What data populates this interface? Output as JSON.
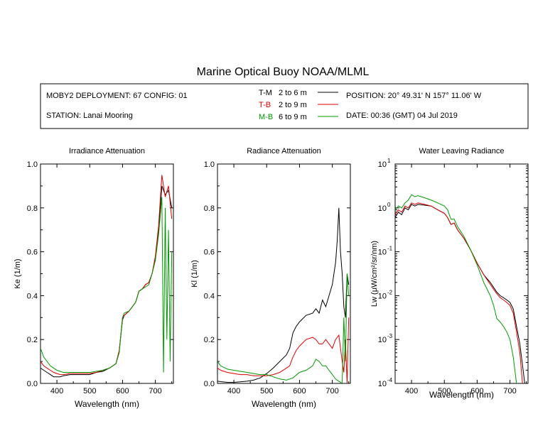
{
  "header": {
    "title": "Marine Optical Buoy NOAA/MLML",
    "deployment": "MOBY2 DEPLOYMENT: 67 CONFIG: 01",
    "station": "STATION: Lanai Mooring",
    "position": "POSITION: 20° 49.31' N   157° 11.06' W",
    "date": "DATE: 00:36 (GMT) 04 Jul 2019",
    "legend": [
      {
        "name": "T-M",
        "range": "2 to 6  m",
        "color": "#000000"
      },
      {
        "name": "T-B",
        "range": "2 to 9  m",
        "color": "#dd0000"
      },
      {
        "name": "M-B",
        "range": "6 to 9  m",
        "color": "#009900"
      }
    ]
  },
  "chart_data": [
    {
      "type": "line",
      "title": "Irradiance Attenuation",
      "xlabel": "Wavelength (nm)",
      "ylabel": "Ke  (1/m)",
      "xlim": [
        350,
        755
      ],
      "ylim": [
        0,
        1.0
      ],
      "xticks": [
        400,
        500,
        600,
        700
      ],
      "yticks": [
        0.0,
        0.2,
        0.4,
        0.6,
        0.8,
        1.0
      ],
      "ytick_labels": [
        "0.0",
        "0.2",
        "0.4",
        "0.6",
        "0.8",
        "1.0"
      ],
      "series": [
        {
          "name": "T-M",
          "color": "#000000",
          "x": [
            350,
            360,
            370,
            380,
            390,
            400,
            410,
            420,
            440,
            460,
            480,
            500,
            520,
            540,
            560,
            580,
            590,
            600,
            605,
            620,
            640,
            650,
            660,
            670,
            680,
            690,
            700,
            710,
            720,
            730,
            740,
            750
          ],
          "y": [
            0.07,
            0.06,
            0.05,
            0.04,
            0.03,
            0.03,
            0.03,
            0.035,
            0.04,
            0.04,
            0.04,
            0.04,
            0.05,
            0.055,
            0.07,
            0.09,
            0.15,
            0.29,
            0.31,
            0.33,
            0.37,
            0.42,
            0.43,
            0.45,
            0.46,
            0.5,
            0.57,
            0.7,
            0.9,
            0.86,
            0.88,
            0.8
          ]
        },
        {
          "name": "T-B",
          "color": "#dd0000",
          "x": [
            350,
            360,
            370,
            380,
            390,
            400,
            410,
            420,
            440,
            460,
            480,
            500,
            520,
            540,
            560,
            580,
            590,
            600,
            605,
            620,
            640,
            650,
            660,
            670,
            680,
            690,
            700,
            710,
            720,
            730,
            740,
            750
          ],
          "y": [
            0.1,
            0.08,
            0.07,
            0.06,
            0.05,
            0.045,
            0.04,
            0.04,
            0.045,
            0.045,
            0.045,
            0.045,
            0.05,
            0.06,
            0.07,
            0.09,
            0.15,
            0.3,
            0.31,
            0.33,
            0.37,
            0.42,
            0.43,
            0.45,
            0.46,
            0.5,
            0.58,
            0.72,
            0.95,
            0.85,
            0.9,
            0.75
          ]
        },
        {
          "name": "M-B",
          "color": "#009900",
          "x": [
            350,
            360,
            370,
            380,
            390,
            400,
            410,
            420,
            440,
            460,
            480,
            500,
            520,
            540,
            560,
            580,
            590,
            600,
            605,
            620,
            640,
            650,
            660,
            670,
            680,
            690,
            700,
            710,
            720,
            725,
            730,
            735,
            740,
            745,
            750
          ],
          "y": [
            0.16,
            0.12,
            0.1,
            0.08,
            0.07,
            0.06,
            0.055,
            0.05,
            0.05,
            0.05,
            0.05,
            0.05,
            0.055,
            0.06,
            0.07,
            0.09,
            0.14,
            0.3,
            0.32,
            0.33,
            0.37,
            0.42,
            0.43,
            0.44,
            0.45,
            0.5,
            0.56,
            0.68,
            0.85,
            0.05,
            0.8,
            0.2,
            0.7,
            0.1,
            0.6
          ]
        }
      ]
    },
    {
      "type": "line",
      "title": "Radiance Attenuation",
      "xlabel": "Wavelength (nm)",
      "ylabel": "Kl  (1/m)",
      "xlim": [
        350,
        755
      ],
      "ylim": [
        0,
        1.0
      ],
      "xticks": [
        400,
        500,
        600,
        700
      ],
      "yticks": [
        0.0,
        0.2,
        0.4,
        0.6,
        0.8,
        1.0
      ],
      "ytick_labels": [
        "0.0",
        "0.2",
        "0.4",
        "0.6",
        "0.8",
        "1.0"
      ],
      "series": [
        {
          "name": "T-M",
          "color": "#000000",
          "x": [
            350,
            360,
            380,
            400,
            420,
            440,
            460,
            480,
            500,
            520,
            540,
            560,
            570,
            580,
            590,
            600,
            620,
            640,
            650,
            660,
            670,
            680,
            690,
            700,
            710,
            715,
            720,
            725,
            730,
            735,
            740,
            745,
            750
          ],
          "y": [
            0.01,
            0.008,
            0.005,
            0.005,
            0.007,
            0.01,
            0.015,
            0.025,
            0.045,
            0.07,
            0.1,
            0.13,
            0.16,
            0.23,
            0.26,
            0.28,
            0.31,
            0.32,
            0.34,
            0.32,
            0.38,
            0.35,
            0.4,
            0.45,
            0.55,
            0.65,
            0.8,
            0.6,
            0.5,
            0.35,
            0.3,
            0.5,
            0.45
          ]
        },
        {
          "name": "T-B",
          "color": "#dd0000",
          "x": [
            350,
            360,
            380,
            400,
            420,
            440,
            460,
            480,
            500,
            520,
            540,
            560,
            570,
            580,
            590,
            600,
            620,
            640,
            650,
            660,
            670,
            680,
            690,
            700,
            710,
            720,
            730,
            735,
            740,
            745,
            750
          ],
          "y": [
            0.07,
            0.06,
            0.05,
            0.045,
            0.04,
            0.04,
            0.035,
            0.035,
            0.035,
            0.04,
            0.05,
            0.07,
            0.08,
            0.12,
            0.15,
            0.17,
            0.2,
            0.21,
            0.2,
            0.18,
            0.18,
            0.2,
            0.18,
            0.16,
            0.2,
            0.22,
            0.1,
            0.05,
            0.2,
            0.0,
            0.3
          ]
        },
        {
          "name": "M-B",
          "color": "#009900",
          "x": [
            350,
            360,
            380,
            400,
            420,
            440,
            460,
            480,
            500,
            520,
            540,
            560,
            580,
            600,
            620,
            640,
            650,
            660,
            670,
            680,
            690,
            700,
            710,
            720,
            730,
            735,
            740,
            745,
            750
          ],
          "y": [
            0.1,
            0.08,
            0.065,
            0.06,
            0.055,
            0.05,
            0.045,
            0.04,
            0.04,
            0.03,
            0.02,
            0.015,
            0.025,
            0.05,
            0.06,
            0.08,
            0.11,
            0.1,
            0.08,
            0.08,
            0.06,
            0.04,
            0.02,
            0.01,
            0.0,
            0.3,
            0.1,
            0.5,
            0.4
          ]
        }
      ]
    },
    {
      "type": "line",
      "title": "Water Leaving Radiance",
      "xlabel": "Wavelength (nm)",
      "ylabel": "Lw  (μW/cm²/sr/nm)",
      "scale": "log",
      "xlim": [
        350,
        755
      ],
      "ylim_exp": [
        -4,
        1
      ],
      "xticks": [
        400,
        500,
        600,
        700
      ],
      "yticks_exp": [
        -4,
        -3,
        -2,
        -1,
        0,
        1
      ],
      "series": [
        {
          "name": "T-M",
          "color": "#000000",
          "x": [
            350,
            360,
            370,
            380,
            390,
            400,
            410,
            420,
            440,
            460,
            480,
            500,
            510,
            520,
            530,
            540,
            560,
            580,
            600,
            620,
            640,
            660,
            670,
            680,
            690,
            700,
            710,
            720,
            730,
            740,
            745
          ],
          "y": [
            0.6,
            0.8,
            0.7,
            1.0,
            0.9,
            1.2,
            1.1,
            1.2,
            1.15,
            1.1,
            0.9,
            0.75,
            0.6,
            0.42,
            0.45,
            0.32,
            0.2,
            0.11,
            0.055,
            0.03,
            0.02,
            0.012,
            0.01,
            0.009,
            0.008,
            0.007,
            0.005,
            0.002,
            0.0008,
            0.0002,
            0.0001
          ]
        },
        {
          "name": "T-B",
          "color": "#dd0000",
          "x": [
            350,
            360,
            370,
            380,
            390,
            400,
            410,
            420,
            440,
            460,
            480,
            500,
            510,
            520,
            530,
            540,
            560,
            580,
            600,
            620,
            640,
            660,
            670,
            680,
            690,
            700,
            710,
            720,
            730,
            738
          ],
          "y": [
            0.7,
            0.9,
            0.8,
            1.1,
            1.0,
            1.3,
            1.2,
            1.3,
            1.2,
            1.1,
            0.9,
            0.75,
            0.6,
            0.42,
            0.45,
            0.32,
            0.2,
            0.11,
            0.055,
            0.03,
            0.018,
            0.011,
            0.009,
            0.008,
            0.007,
            0.006,
            0.004,
            0.0015,
            0.0005,
            0.0001
          ]
        },
        {
          "name": "M-B",
          "color": "#009900",
          "x": [
            350,
            360,
            370,
            380,
            390,
            400,
            410,
            420,
            440,
            460,
            480,
            500,
            510,
            520,
            530,
            540,
            560,
            580,
            600,
            620,
            640,
            650,
            660,
            670,
            680,
            690,
            700,
            710,
            715,
            720
          ],
          "y": [
            0.9,
            1.1,
            1.0,
            1.3,
            1.5,
            2.0,
            1.8,
            1.9,
            1.7,
            1.5,
            1.3,
            1.1,
            0.9,
            0.55,
            0.55,
            0.38,
            0.22,
            0.11,
            0.05,
            0.02,
            0.01,
            0.006,
            0.003,
            0.0025,
            0.002,
            0.0015,
            0.001,
            0.0004,
            0.0002,
            0.0001
          ]
        }
      ]
    }
  ]
}
